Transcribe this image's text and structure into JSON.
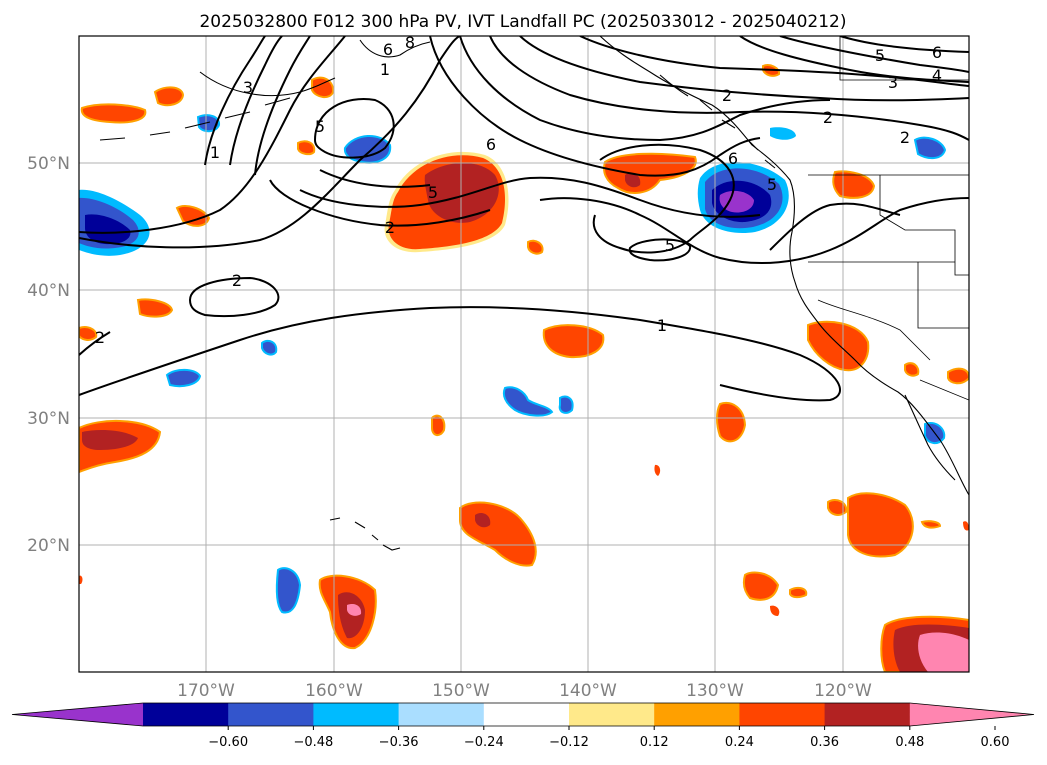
{
  "title": "2025032800 F012 300 hPa PV, IVT Landfall PC (2025033012 - 2025040212)",
  "longitude_labels": [
    "170°W",
    "160°W",
    "150°W",
    "140°W",
    "130°W",
    "120°W"
  ],
  "latitude_labels": [
    "50°N",
    "40°N",
    "30°N",
    "20°N"
  ],
  "colorbar": {
    "tick_labels": [
      "−0.60",
      "−0.48",
      "−0.36",
      "−0.24",
      "−0.12",
      "0.12",
      "0.24",
      "0.36",
      "0.48",
      "0.60"
    ],
    "colors": [
      "#9933cc",
      "#000099",
      "#3355cc",
      "#00bbff",
      "#aadeff",
      "#ffffff",
      "#ffe98a",
      "#ffa000",
      "#ff4500",
      "#b22222",
      "#ff85b0"
    ]
  },
  "contour_labels": [
    "6",
    "8",
    "3",
    "1",
    "5",
    "1",
    "2",
    "6",
    "5",
    "2",
    "2",
    "6",
    "5",
    "5",
    "1",
    "2",
    "5",
    "6",
    "4",
    "3",
    "2",
    "2"
  ]
}
